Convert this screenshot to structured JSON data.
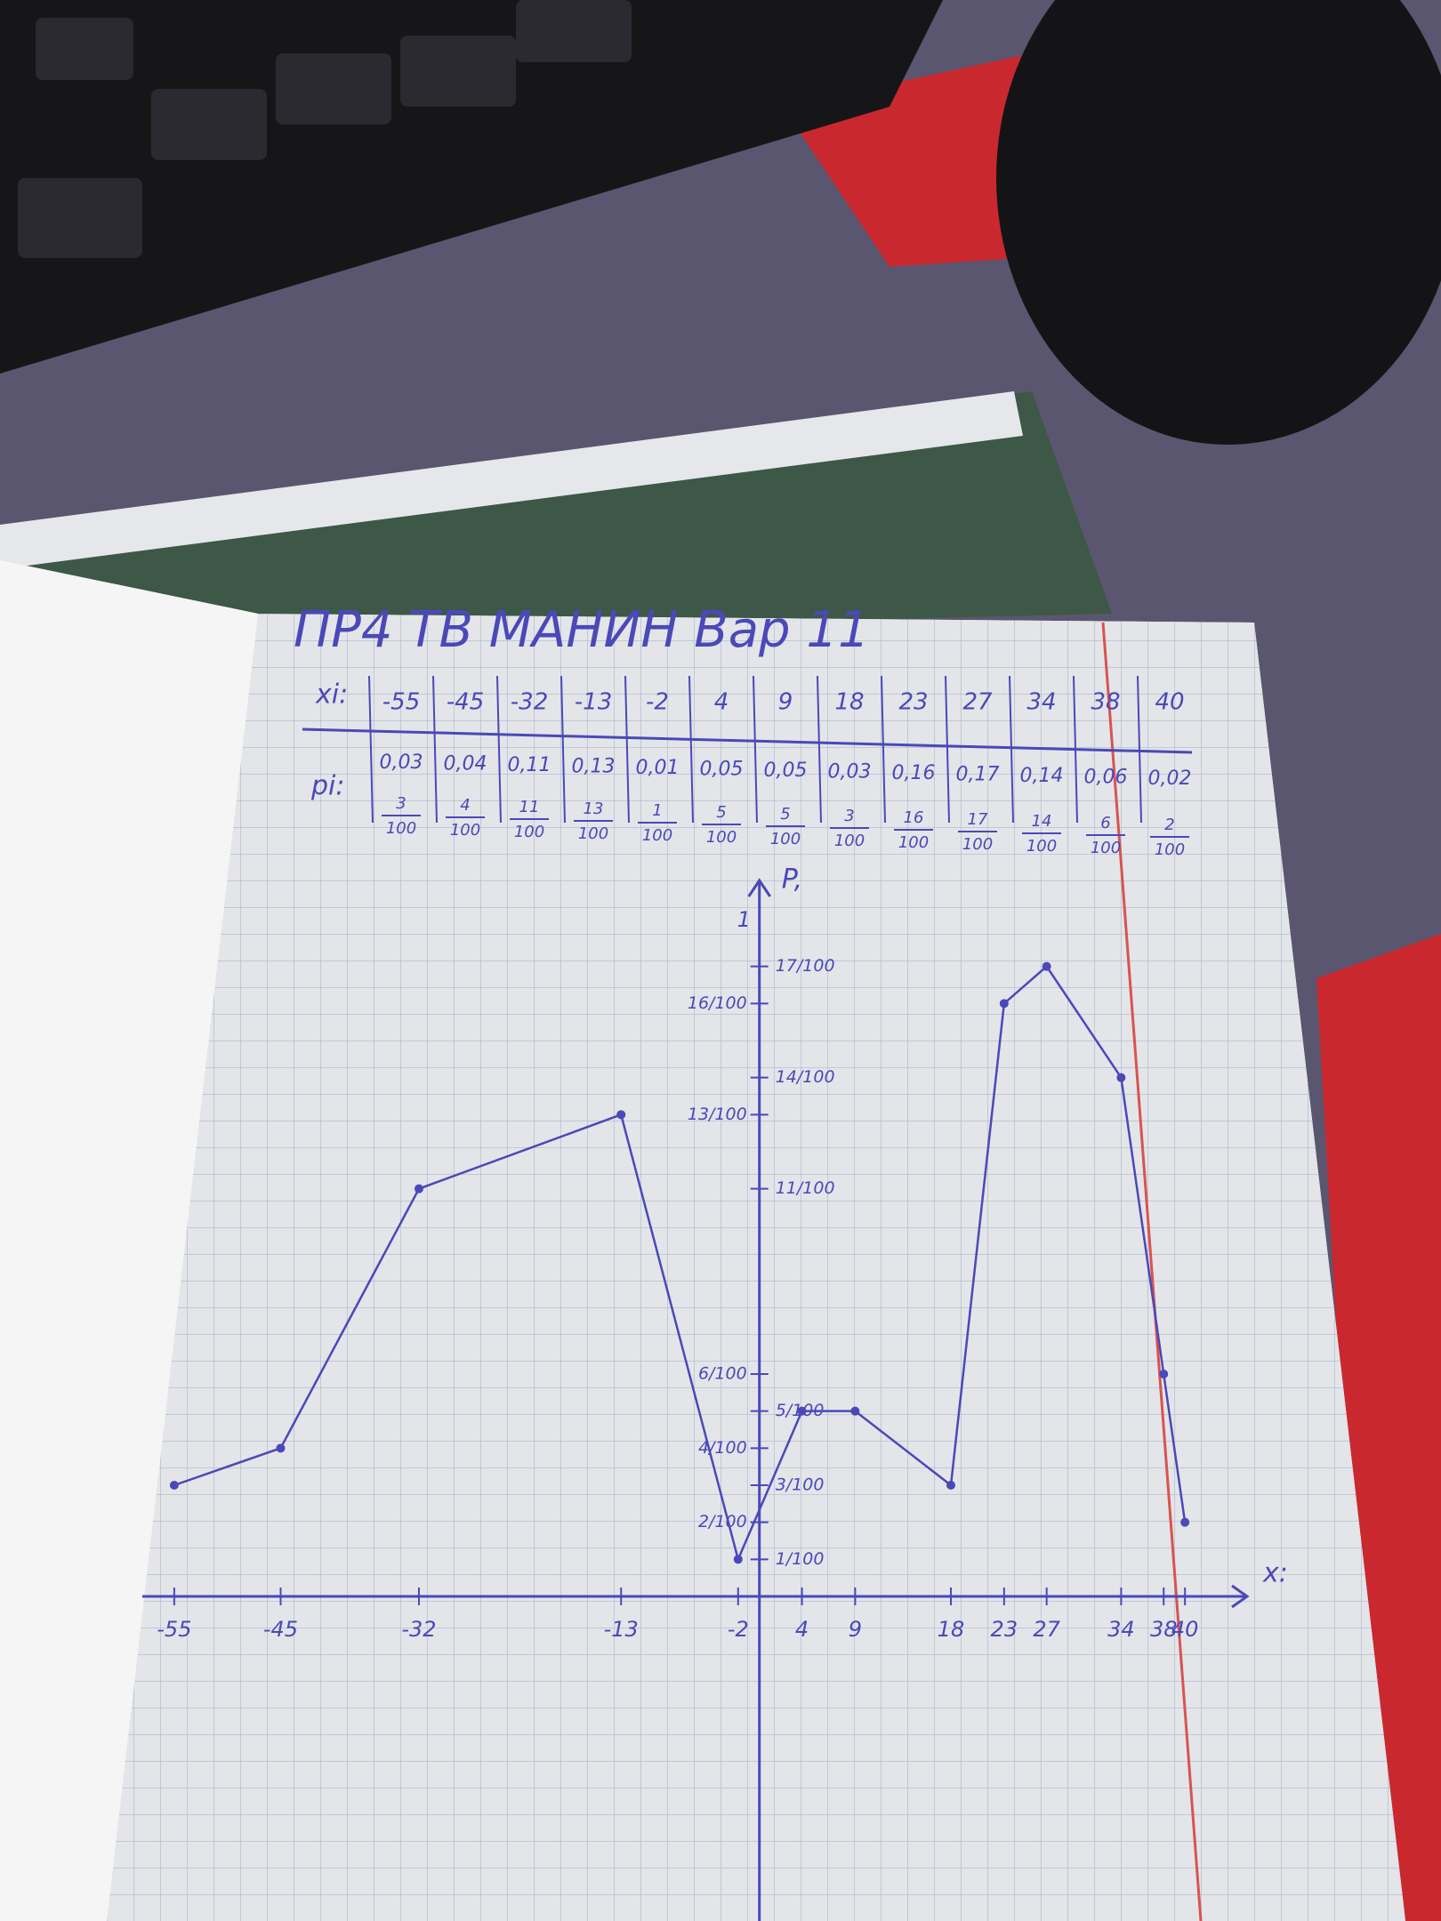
{
  "header": {
    "title": "ПР4 ТВ МАНИН Вар 11"
  },
  "table": {
    "row_labels": [
      "xi:",
      "pi:"
    ],
    "x_row": [
      "-55",
      "-45",
      "-32",
      "-13",
      "-2",
      "4",
      "9",
      "18",
      "23",
      "27",
      "34",
      "38",
      "40"
    ],
    "p_row": [
      "0,03",
      "0,04",
      "0,11",
      "0,13",
      "0,01",
      "0,05",
      "0,05",
      "0,03",
      "0,16",
      "0,17",
      "0,14",
      "0,06",
      "0,02"
    ],
    "fractions": [
      {
        "num": "3",
        "den": "100"
      },
      {
        "num": "4",
        "den": "100"
      },
      {
        "num": "11",
        "den": "100"
      },
      {
        "num": "13",
        "den": "100"
      },
      {
        "num": "1",
        "den": "100"
      },
      {
        "num": "5",
        "den": "100"
      },
      {
        "num": "5",
        "den": "100"
      },
      {
        "num": "3",
        "den": "100"
      },
      {
        "num": "16",
        "den": "100"
      },
      {
        "num": "17",
        "den": "100"
      },
      {
        "num": "14",
        "den": "100"
      },
      {
        "num": "6",
        "den": "100"
      },
      {
        "num": "2",
        "den": "100"
      }
    ]
  },
  "chart_data": {
    "type": "line",
    "x_label": "x:",
    "y_label": "P,",
    "axis_end_label": "1",
    "x": [
      -55,
      -45,
      -32,
      -13,
      -2,
      4,
      9,
      18,
      23,
      27,
      34,
      38,
      40
    ],
    "values": [
      0.03,
      0.04,
      0.11,
      0.13,
      0.01,
      0.05,
      0.05,
      0.03,
      0.16,
      0.17,
      0.14,
      0.06,
      0.02
    ],
    "color": "#4b48b8",
    "xlim": [
      -58,
      44
    ],
    "ylim": [
      0,
      0.18
    ],
    "xticks": [
      -55,
      -45,
      -32,
      -13,
      -2,
      4,
      9,
      18,
      23,
      27,
      34,
      38,
      40
    ],
    "yticks": [
      {
        "value": 0.01,
        "label": "1/100"
      },
      {
        "value": 0.02,
        "label": "2/100"
      },
      {
        "value": 0.03,
        "label": "3/100"
      },
      {
        "value": 0.04,
        "label": "4/100"
      },
      {
        "value": 0.05,
        "label": "5/100"
      },
      {
        "value": 0.06,
        "label": "6/100"
      },
      {
        "value": 0.11,
        "label": "11/100"
      },
      {
        "value": 0.13,
        "label": "13/100"
      },
      {
        "value": 0.14,
        "label": "14/100"
      },
      {
        "value": 0.16,
        "label": "16/100"
      },
      {
        "value": 0.17,
        "label": "17/100"
      }
    ]
  }
}
